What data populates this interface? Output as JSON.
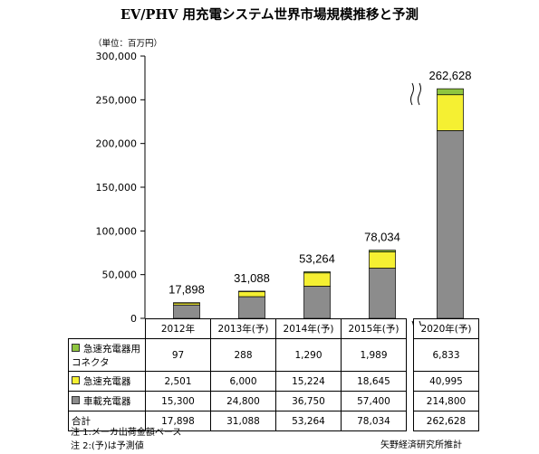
{
  "title": "EV/PHV 用充電システム世界市場規模推移と予測",
  "unit_label": "（単位：百万円）",
  "colors": {
    "connector": "#8fc63f",
    "quick_charger": "#f5f032",
    "onboard_charger": "#8c8c8c"
  },
  "chart_data": {
    "type": "bar",
    "stacked": true,
    "categories": [
      "2012年",
      "2013年(予)",
      "2014年(予)",
      "2015年(予)",
      "2020年(予)"
    ],
    "series": [
      {
        "name": "車載充電器",
        "values": [
          15300,
          24800,
          36750,
          57400,
          214800
        ]
      },
      {
        "name": "急速充電器",
        "values": [
          2501,
          6000,
          15224,
          18645,
          40995
        ]
      },
      {
        "name": "急速充電器用コネクタ",
        "values": [
          97,
          288,
          1290,
          1989,
          6833
        ]
      }
    ],
    "totals": [
      17898,
      31088,
      53264,
      78034,
      262628
    ],
    "total_labels": [
      "17,898",
      "31,088",
      "53,264",
      "78,034",
      "262,628"
    ],
    "ylim": [
      0,
      300000
    ],
    "yticks": [
      0,
      50000,
      100000,
      150000,
      200000,
      250000,
      300000
    ],
    "ytick_labels": [
      "0",
      "50,000",
      "100,000",
      "150,000",
      "200,000",
      "250,000",
      "300,000"
    ],
    "axis_break": true
  },
  "table": {
    "rows": [
      {
        "label_lines": [
          "急速充電器用",
          "コネクタ"
        ],
        "values": [
          "97",
          "288",
          "1,290",
          "1,989",
          "6,833"
        ]
      },
      {
        "label_lines": [
          "急速充電器"
        ],
        "values": [
          "2,501",
          "6,000",
          "15,224",
          "18,645",
          "40,995"
        ]
      },
      {
        "label_lines": [
          "車載充電器"
        ],
        "values": [
          "15,300",
          "24,800",
          "36,750",
          "57,400",
          "214,800"
        ]
      },
      {
        "label_lines": [
          "合計"
        ],
        "values": [
          "17,898",
          "31,088",
          "53,264",
          "78,034",
          "262,628"
        ]
      }
    ]
  },
  "notes": [
    "注 1:メーカ出荷金額ベース",
    "注 2:(予)は予測値"
  ],
  "source": "矢野経済研究所推計"
}
